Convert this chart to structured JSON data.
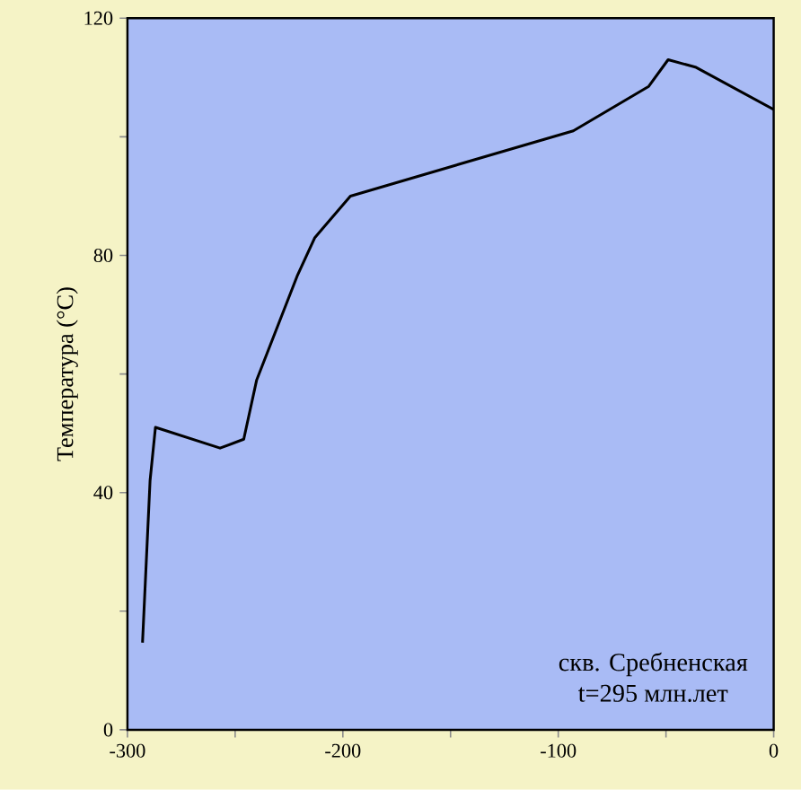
{
  "chart_data": {
    "type": "line",
    "ylabel": "Температура (°C)",
    "x": [
      -293,
      -289.5,
      -287,
      -257,
      -246,
      -240,
      -221,
      -213,
      -196.5,
      -93,
      -58,
      -49,
      -36,
      0
    ],
    "series": [
      {
        "color": "#000000",
        "values": [
          14.7,
          42,
          51,
          47.5,
          49,
          59,
          76.7,
          83,
          90,
          101,
          108.5,
          113,
          111.7,
          104.6
        ]
      }
    ],
    "xlim": [
      -300,
      0
    ],
    "ylim": [
      0,
      120
    ],
    "xticks": [
      -300,
      {
        "value": -250,
        "label": null
      },
      -200,
      {
        "value": -150,
        "label": null
      },
      -100,
      {
        "value": -50,
        "label": null
      },
      0
    ],
    "yticks": [
      0,
      {
        "value": 20,
        "label": null
      },
      40,
      {
        "value": 60,
        "label": null
      },
      80,
      {
        "value": 100,
        "label": null
      },
      120
    ],
    "annotations": [
      "скв. Сребненская",
      "t=295 млн.лет"
    ],
    "marker": "none",
    "line_style": "solid"
  }
}
